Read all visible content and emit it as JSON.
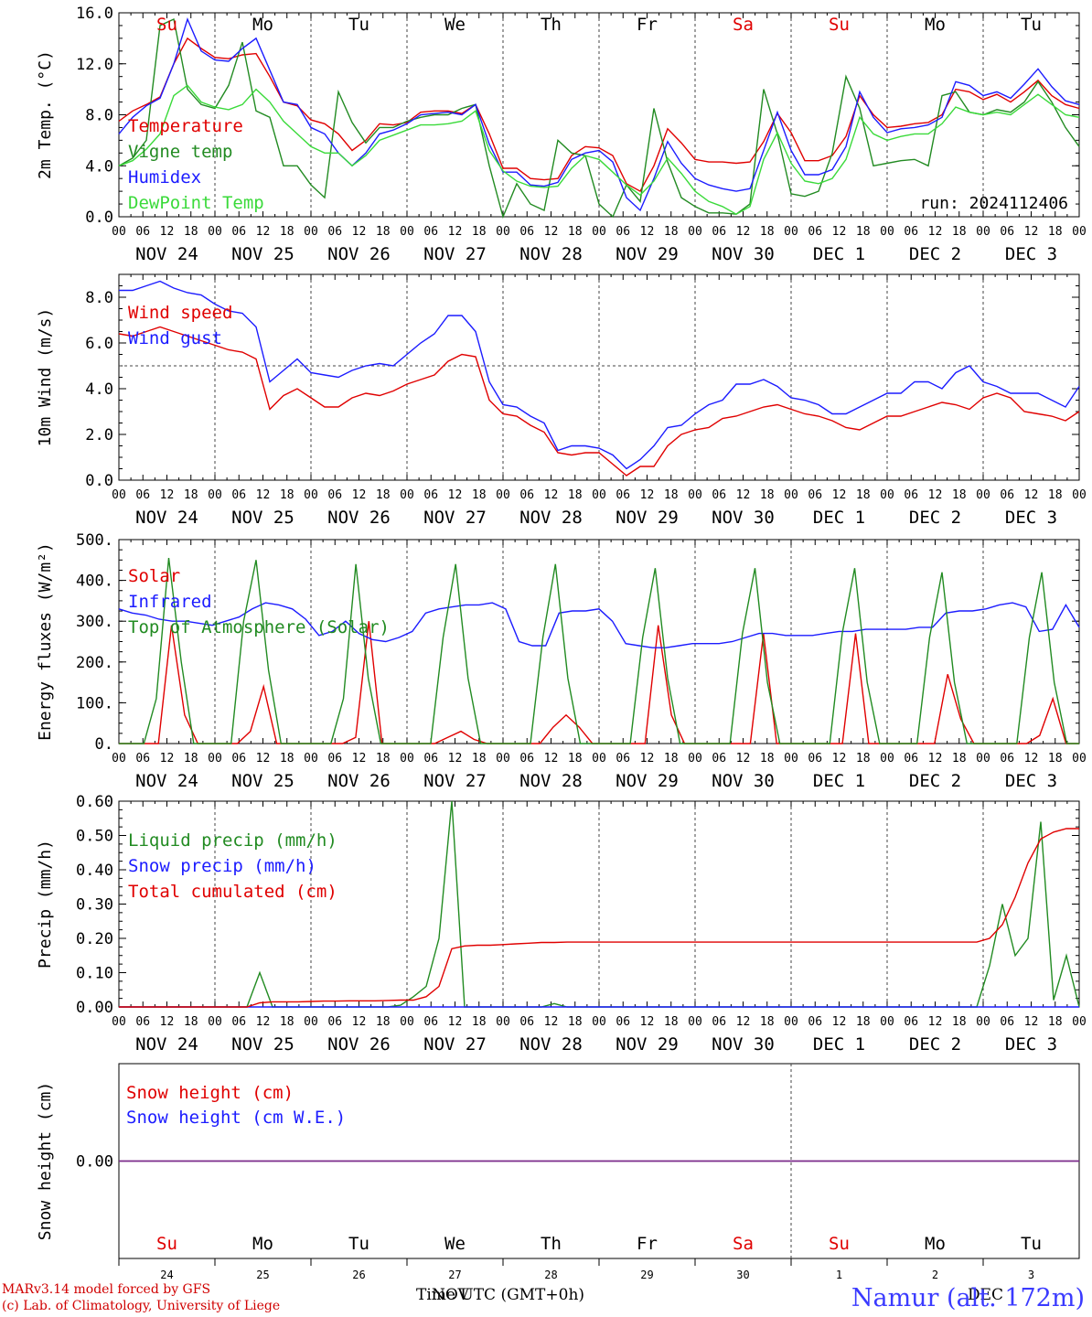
{
  "days": {
    "dow": [
      "Su",
      "Mo",
      "Tu",
      "We",
      "Th",
      "Fr",
      "Sa",
      "Su",
      "Mo",
      "Tu"
    ],
    "dow_colors": [
      "#e00000",
      "#000000",
      "#000000",
      "#000000",
      "#000000",
      "#000000",
      "#e00000",
      "#e00000",
      "#000000",
      "#000000"
    ],
    "dates": [
      "NOV 24",
      "NOV 25",
      "NOV 26",
      "NOV 27",
      "NOV 28",
      "NOV 29",
      "NOV 30",
      "DEC  1",
      "DEC  2",
      "DEC  3"
    ],
    "day_numbers": [
      "24",
      "25",
      "26",
      "27",
      "28",
      "29",
      "30",
      "1",
      "2",
      "3"
    ],
    "hour_ticks": [
      "00",
      "06",
      "12",
      "18"
    ],
    "final_hour": "00"
  },
  "chart_data": [
    {
      "type": "line",
      "ylabel": "2m Temp. (°C)",
      "ylim": [
        0,
        16
      ],
      "yticks": [
        "0.0",
        "4.0",
        "8.0",
        "12.0",
        "16.0"
      ],
      "x_hours_step": 3,
      "annotation": "run: 2024112406",
      "series": [
        {
          "name": "Temperature",
          "color": "#e00000",
          "values": [
            7.5,
            8.3,
            8.8,
            9.4,
            12.0,
            14.0,
            13.2,
            12.5,
            12.4,
            12.7,
            12.8,
            11.0,
            9.0,
            8.7,
            7.6,
            7.3,
            6.5,
            5.2,
            6.0,
            7.3,
            7.2,
            7.4,
            8.2,
            8.3,
            8.3,
            8.1,
            8.8,
            6.5,
            3.8,
            3.8,
            3.0,
            2.9,
            3.0,
            4.8,
            5.5,
            5.4,
            4.8,
            2.6,
            2.0,
            4.0,
            6.9,
            5.8,
            4.5,
            4.3,
            4.3,
            4.2,
            4.3,
            5.9,
            8.1,
            6.6,
            4.4,
            4.4,
            4.8,
            6.3,
            9.5,
            8.0,
            7.0,
            7.1,
            7.3,
            7.4,
            8.0,
            10.0,
            9.8,
            9.2,
            9.6,
            9.0,
            9.8,
            10.7,
            9.5,
            8.8,
            8.5
          ]
        },
        {
          "name": "Vigne temp",
          "color": "#228b22",
          "values": [
            4.0,
            4.6,
            6.0,
            15.0,
            15.5,
            10.0,
            8.8,
            8.5,
            10.3,
            13.7,
            8.3,
            7.8,
            4.0,
            4.0,
            2.5,
            1.5,
            9.8,
            7.4,
            5.8,
            7.0,
            7.0,
            7.5,
            7.8,
            8.0,
            8.0,
            8.5,
            8.8,
            4.0,
            0.0,
            2.6,
            1.0,
            0.5,
            6.0,
            5.0,
            4.8,
            1.0,
            0.0,
            2.5,
            1.2,
            8.5,
            4.3,
            1.5,
            0.8,
            0.3,
            0.3,
            0.2,
            1.0,
            10.0,
            6.5,
            1.8,
            1.6,
            2.0,
            5.0,
            11.0,
            8.5,
            4.0,
            4.2,
            4.4,
            4.5,
            4.0,
            9.5,
            9.8,
            8.2,
            8.0,
            8.4,
            8.2,
            9.0,
            10.6,
            9.0,
            7.0,
            5.5
          ]
        },
        {
          "name": "Humidex",
          "color": "#1c1cff",
          "values": [
            6.5,
            7.8,
            8.7,
            9.3,
            12.0,
            15.5,
            13.0,
            12.3,
            12.2,
            13.2,
            14.0,
            11.5,
            9.0,
            8.8,
            7.0,
            6.5,
            5.0,
            4.0,
            5.0,
            6.5,
            6.8,
            7.3,
            8.0,
            8.1,
            8.2,
            8.0,
            8.8,
            5.7,
            3.5,
            3.5,
            2.5,
            2.4,
            2.7,
            4.5,
            5.0,
            5.2,
            4.3,
            1.5,
            0.5,
            3.0,
            5.9,
            4.2,
            3.0,
            2.5,
            2.2,
            2.0,
            2.2,
            5.2,
            8.2,
            5.2,
            3.3,
            3.3,
            3.7,
            5.5,
            9.8,
            7.8,
            6.6,
            6.9,
            7.0,
            7.2,
            7.8,
            10.6,
            10.3,
            9.5,
            9.8,
            9.3,
            10.4,
            11.6,
            10.2,
            9.1,
            8.8
          ]
        },
        {
          "name": "DewPoint Temp",
          "color": "#3ada3a",
          "values": [
            4.0,
            4.4,
            5.3,
            6.5,
            9.5,
            10.3,
            9.0,
            8.6,
            8.4,
            8.8,
            10.0,
            9.0,
            7.5,
            6.5,
            5.5,
            5.0,
            5.0,
            4.0,
            4.8,
            6.0,
            6.4,
            6.8,
            7.2,
            7.2,
            7.3,
            7.5,
            8.3,
            5.2,
            3.6,
            2.8,
            2.4,
            2.3,
            2.4,
            3.8,
            4.8,
            4.5,
            3.5,
            2.5,
            1.7,
            2.8,
            4.6,
            3.4,
            2.0,
            1.2,
            0.8,
            0.2,
            0.8,
            4.5,
            6.6,
            4.2,
            2.8,
            2.6,
            3.0,
            4.5,
            7.8,
            6.5,
            6.0,
            6.3,
            6.5,
            6.5,
            7.3,
            8.6,
            8.2,
            8.0,
            8.2,
            8.0,
            8.8,
            9.6,
            8.8,
            8.0,
            7.8
          ]
        }
      ]
    },
    {
      "type": "line",
      "ylabel": "10m Wind (m/s)",
      "ylim": [
        0,
        9
      ],
      "yticks": [
        "0.0",
        "2.0",
        "4.0",
        "6.0",
        "8.0"
      ],
      "x_hours_step": 3,
      "reference_line": 5,
      "series": [
        {
          "name": "Wind speed",
          "color": "#e00000",
          "values": [
            6.4,
            6.3,
            6.5,
            6.7,
            6.5,
            6.3,
            6.1,
            5.9,
            5.7,
            5.6,
            5.3,
            3.1,
            3.7,
            4.0,
            3.6,
            3.2,
            3.2,
            3.6,
            3.8,
            3.7,
            3.9,
            4.2,
            4.4,
            4.6,
            5.2,
            5.5,
            5.4,
            3.5,
            2.9,
            2.8,
            2.4,
            2.1,
            1.2,
            1.1,
            1.2,
            1.2,
            0.7,
            0.2,
            0.6,
            0.6,
            1.5,
            2.0,
            2.2,
            2.3,
            2.7,
            2.8,
            3.0,
            3.2,
            3.3,
            3.1,
            2.9,
            2.8,
            2.6,
            2.3,
            2.2,
            2.5,
            2.8,
            2.8,
            3.0,
            3.2,
            3.4,
            3.3,
            3.1,
            3.6,
            3.8,
            3.6,
            3.0,
            2.9,
            2.8,
            2.6,
            3.0
          ]
        },
        {
          "name": "Wind gust",
          "color": "#1c1cff",
          "values": [
            8.3,
            8.3,
            8.5,
            8.7,
            8.4,
            8.2,
            8.1,
            7.7,
            7.4,
            7.3,
            6.7,
            4.3,
            4.8,
            5.3,
            4.7,
            4.6,
            4.5,
            4.8,
            5.0,
            5.1,
            5.0,
            5.5,
            6.0,
            6.4,
            7.2,
            7.2,
            6.5,
            4.3,
            3.3,
            3.2,
            2.8,
            2.5,
            1.3,
            1.5,
            1.5,
            1.4,
            1.1,
            0.5,
            0.9,
            1.5,
            2.3,
            2.4,
            2.9,
            3.3,
            3.5,
            4.2,
            4.2,
            4.4,
            4.1,
            3.6,
            3.5,
            3.3,
            2.9,
            2.9,
            3.2,
            3.5,
            3.8,
            3.8,
            4.3,
            4.3,
            4.0,
            4.7,
            5.0,
            4.3,
            4.1,
            3.8,
            3.8,
            3.8,
            3.5,
            3.2,
            4.1
          ]
        }
      ]
    },
    {
      "type": "line",
      "ylabel": "Energy fluxes (W/m²)",
      "ylim": [
        0,
        500
      ],
      "yticks": [
        "0.",
        "100.",
        "200.",
        "300.",
        "400.",
        "500."
      ],
      "x_hours_step": 3,
      "series": [
        {
          "name": "Solar",
          "color": "#e00000",
          "values": [
            0,
            0,
            0,
            0,
            290,
            70,
            0,
            0,
            0,
            0,
            30,
            140,
            0,
            0,
            0,
            0,
            0,
            0,
            15,
            300,
            0,
            0,
            0,
            0,
            0,
            15,
            30,
            10,
            0,
            0,
            0,
            0,
            0,
            40,
            70,
            40,
            0,
            0,
            0,
            0,
            0,
            290,
            70,
            0,
            0,
            0,
            0,
            0,
            0,
            270,
            0,
            0,
            0,
            0,
            0,
            0,
            270,
            0,
            0,
            0,
            0,
            0,
            0,
            170,
            60,
            0,
            0,
            0,
            0,
            0,
            20,
            110,
            0,
            0
          ]
        },
        {
          "name": "Infrared",
          "color": "#1c1cff",
          "values": [
            330,
            320,
            315,
            305,
            300,
            300,
            295,
            290,
            300,
            310,
            330,
            345,
            340,
            330,
            305,
            265,
            275,
            300,
            270,
            255,
            250,
            260,
            275,
            320,
            330,
            335,
            340,
            340,
            345,
            330,
            250,
            240,
            240,
            320,
            325,
            325,
            330,
            300,
            245,
            240,
            235,
            235,
            240,
            245,
            245,
            245,
            250,
            260,
            270,
            270,
            265,
            265,
            265,
            270,
            275,
            275,
            280,
            280,
            280,
            280,
            285,
            285,
            320,
            325,
            325,
            330,
            340,
            345,
            335,
            275,
            280,
            340,
            285
          ]
        },
        {
          "name": "Top of Atmosphere (Solar)",
          "color": "#228b22",
          "values": [
            0,
            0,
            0,
            110,
            455,
            200,
            0,
            0,
            0,
            0,
            300,
            450,
            180,
            0,
            0,
            0,
            0,
            0,
            110,
            440,
            160,
            0,
            0,
            0,
            0,
            0,
            260,
            440,
            160,
            0,
            0,
            0,
            0,
            0,
            260,
            440,
            160,
            0,
            0,
            0,
            0,
            0,
            260,
            430,
            160,
            0,
            0,
            0,
            0,
            0,
            270,
            430,
            150,
            0,
            0,
            0,
            0,
            0,
            270,
            430,
            150,
            0,
            0,
            0,
            0,
            260,
            420,
            150,
            0,
            0,
            0,
            0,
            0,
            260,
            420,
            150,
            0,
            0
          ]
        }
      ]
    },
    {
      "type": "line",
      "ylabel": "Precip (mm/h)",
      "ylim": [
        0,
        0.6
      ],
      "yticks": [
        "0.00",
        "0.10",
        "0.20",
        "0.30",
        "0.40",
        "0.50",
        "0.60"
      ],
      "x_hours_step": 3,
      "series": [
        {
          "name": "Liquid precip (mm/h)",
          "color": "#228b22",
          "values": [
            0,
            0,
            0,
            0,
            0,
            0,
            0,
            0,
            0,
            0,
            0,
            0.1,
            0,
            0,
            0,
            0,
            0,
            0,
            0,
            0,
            0,
            0,
            0.005,
            0.03,
            0.06,
            0.2,
            0.6,
            0,
            0,
            0,
            0,
            0,
            0,
            0,
            0.01,
            0,
            0,
            0,
            0,
            0,
            0,
            0,
            0,
            0,
            0,
            0,
            0,
            0,
            0,
            0,
            0,
            0,
            0,
            0,
            0,
            0,
            0,
            0,
            0,
            0,
            0,
            0,
            0,
            0,
            0,
            0,
            0,
            0,
            0.12,
            0.3,
            0.15,
            0.2,
            0.54,
            0.02,
            0.15,
            0
          ]
        },
        {
          "name": "Snow precip (mm/h)",
          "color": "#1c1cff",
          "values": [
            0,
            0,
            0,
            0,
            0,
            0,
            0,
            0,
            0,
            0,
            0,
            0,
            0,
            0,
            0,
            0,
            0,
            0,
            0,
            0,
            0,
            0,
            0,
            0,
            0,
            0,
            0,
            0,
            0,
            0,
            0,
            0,
            0,
            0,
            0,
            0,
            0,
            0,
            0,
            0,
            0,
            0,
            0,
            0,
            0,
            0,
            0,
            0,
            0,
            0,
            0,
            0,
            0,
            0,
            0,
            0,
            0,
            0,
            0,
            0,
            0,
            0,
            0,
            0,
            0,
            0,
            0,
            0,
            0,
            0,
            0,
            0,
            0
          ]
        },
        {
          "name": "Total cumulated (cm)",
          "color": "#e00000",
          "values": [
            0,
            0,
            0,
            0,
            0,
            0,
            0,
            0,
            0,
            0,
            0,
            0.012,
            0.015,
            0.015,
            0.015,
            0.016,
            0.017,
            0.017,
            0.018,
            0.018,
            0.018,
            0.019,
            0.02,
            0.02,
            0.03,
            0.06,
            0.17,
            0.178,
            0.18,
            0.18,
            0.182,
            0.184,
            0.186,
            0.188,
            0.188,
            0.189,
            0.189,
            0.189,
            0.189,
            0.189,
            0.189,
            0.189,
            0.189,
            0.189,
            0.189,
            0.189,
            0.189,
            0.189,
            0.189,
            0.189,
            0.189,
            0.189,
            0.189,
            0.189,
            0.189,
            0.189,
            0.189,
            0.189,
            0.189,
            0.189,
            0.189,
            0.189,
            0.189,
            0.189,
            0.189,
            0.189,
            0.189,
            0.189,
            0.2,
            0.24,
            0.32,
            0.42,
            0.49,
            0.51,
            0.52,
            0.52
          ]
        }
      ]
    },
    {
      "type": "line",
      "ylabel": "Snow height (cm)",
      "ylim": [
        -1,
        1
      ],
      "yticks": [
        "0.00"
      ],
      "x_hours_step": 3,
      "series": [
        {
          "name": "Snow height (cm)",
          "color": "#e00000",
          "values": [
            0,
            0
          ]
        },
        {
          "name": "Snow height (cm W.E.)",
          "color": "#1c1cff",
          "values": [
            0,
            0
          ]
        }
      ]
    }
  ],
  "footer": {
    "xlabel": "Time UTC (GMT+0h)",
    "month_label_1": "NOV",
    "month_label_2": "DEC",
    "credit_line1": "MARv3.14 model forced by GFS",
    "credit_line2": "(c) Lab. of Climatology, University of Liege",
    "station": "Namur (alt. 172m)"
  }
}
